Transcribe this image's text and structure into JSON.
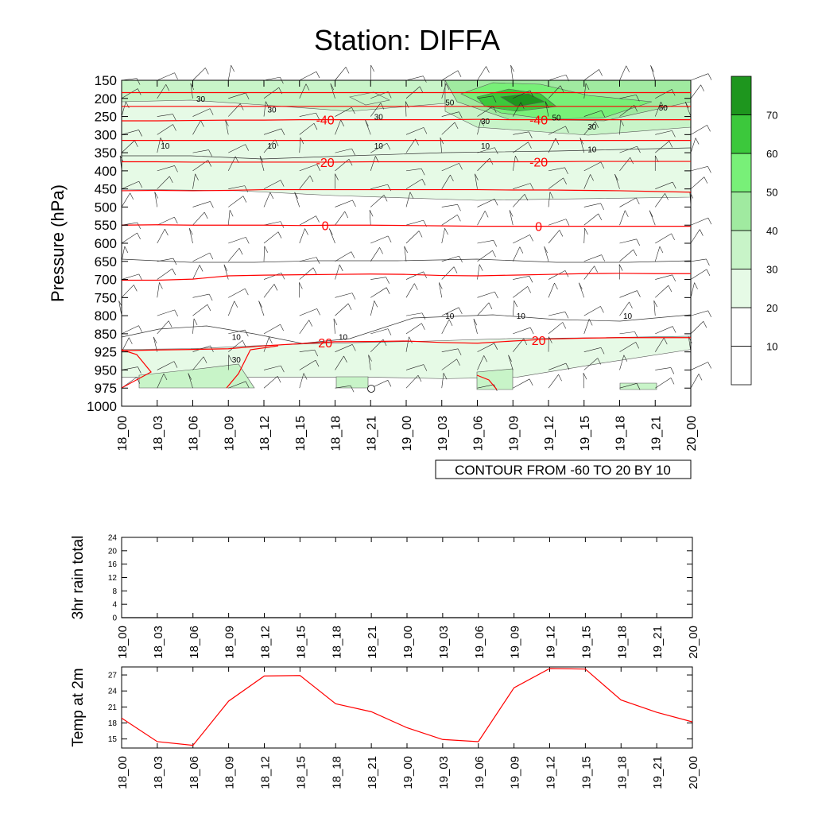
{
  "page": {
    "title": "Station: DIFFA"
  },
  "chart_data": [
    {
      "type": "heatmap",
      "name": "pressure-time cross section",
      "ylabel": "Pressure (hPa)",
      "y_ticks": [
        "150",
        "200",
        "250",
        "300",
        "350",
        "400",
        "450",
        "500",
        "550",
        "600",
        "650",
        "700",
        "750",
        "800",
        "850",
        "925",
        "950",
        "975",
        "1000"
      ],
      "x_ticks": [
        "18_00",
        "18_03",
        "18_06",
        "18_09",
        "18_12",
        "18_15",
        "18_18",
        "18_21",
        "19_00",
        "19_03",
        "19_06",
        "19_09",
        "19_12",
        "19_15",
        "19_18",
        "19_21",
        "20_00"
      ],
      "info_label": "CONTOUR FROM -60 TO 20 BY 10",
      "colorbar": {
        "levels": [
          "10",
          "20",
          "30",
          "40",
          "50",
          "60",
          "70"
        ],
        "colors": [
          "#ffffff",
          "#ffffff",
          "#e6fae6",
          "#c8f4c8",
          "#a0eaa0",
          "#78f078",
          "#3cc83c",
          "#1e961e"
        ]
      },
      "temperature_contours": [
        {
          "label": "-40",
          "values": [
            262,
            262,
            261,
            260,
            260,
            259,
            259,
            259,
            259,
            259,
            258,
            259,
            259,
            259,
            259,
            259,
            259
          ]
        },
        {
          "label": "",
          "values": [
            222,
            222,
            222,
            222,
            222,
            222,
            222,
            222,
            222,
            222,
            222,
            222,
            222,
            222,
            222,
            222,
            222
          ]
        },
        {
          "label": "",
          "values": [
            184,
            184,
            184,
            184,
            184,
            184,
            184,
            184,
            184,
            184,
            184,
            184,
            184,
            184,
            184,
            184,
            184
          ]
        },
        {
          "label": "",
          "values": [
            316,
            316,
            316,
            316,
            316,
            316,
            316,
            316,
            316,
            316,
            316,
            316,
            316,
            316,
            316,
            316,
            316
          ]
        },
        {
          "label": "-20",
          "values": [
            375,
            375,
            376,
            376,
            376,
            376,
            376,
            375,
            375,
            375,
            375,
            375,
            375,
            374,
            374,
            374,
            374
          ]
        },
        {
          "label": "",
          "values": [
            455,
            454,
            455,
            454,
            452,
            452,
            452,
            452,
            452,
            452,
            452,
            453,
            453,
            454,
            455,
            457,
            459
          ]
        },
        {
          "label": "0",
          "values": [
            550,
            549,
            550,
            550,
            550,
            551,
            550,
            550,
            551,
            552,
            553,
            553,
            553,
            553,
            553,
            553,
            553
          ]
        },
        {
          "label": "",
          "values": [
            702,
            702,
            699,
            690,
            688,
            687,
            686,
            685,
            686,
            689,
            690,
            688,
            686,
            684,
            683,
            684,
            684
          ]
        },
        {
          "label": "20",
          "values": [
            920,
            917,
            915,
            912,
            900,
            891,
            883,
            882,
            880,
            886,
            889,
            880,
            872,
            868,
            866,
            866,
            866
          ]
        }
      ],
      "wind_speed_labels": [
        {
          "label": "30",
          "x": "18_06",
          "p": "200"
        },
        {
          "label": "30",
          "x": "18_12",
          "p": "230"
        },
        {
          "label": "30",
          "x": "18_21",
          "p": "250"
        },
        {
          "label": "30",
          "x": "19_06",
          "p": "262"
        },
        {
          "label": "30",
          "x": "19_15",
          "p": "277"
        },
        {
          "label": "50",
          "x": "19_03",
          "p": "210"
        },
        {
          "label": "50",
          "x": "19_12",
          "p": "252"
        },
        {
          "label": "50",
          "x": "19_21",
          "p": "225"
        },
        {
          "label": "10",
          "x": "18_03",
          "p": "330"
        },
        {
          "label": "10",
          "x": "18_12",
          "p": "330"
        },
        {
          "label": "10",
          "x": "18_21",
          "p": "330"
        },
        {
          "label": "10",
          "x": "19_06",
          "p": "330"
        },
        {
          "label": "10",
          "x": "19_15",
          "p": "340"
        },
        {
          "label": "10",
          "x": "18_09",
          "p": "862"
        },
        {
          "label": "10",
          "x": "18_18",
          "p": "862"
        },
        {
          "label": "10",
          "x": "19_03",
          "p": "800"
        },
        {
          "label": "10",
          "x": "19_09",
          "p": "800"
        },
        {
          "label": "10",
          "x": "19_18",
          "p": "800"
        },
        {
          "label": "30",
          "x": "18_09",
          "p": "935"
        }
      ]
    },
    {
      "type": "line",
      "name": "rain",
      "ylabel": "3hr rain total",
      "ylim": [
        0,
        24
      ],
      "y_ticks": [
        "0",
        "4",
        "8",
        "12",
        "16",
        "20",
        "24"
      ],
      "x": [
        "18_00",
        "18_03",
        "18_06",
        "18_09",
        "18_12",
        "18_15",
        "18_18",
        "18_21",
        "19_00",
        "19_03",
        "19_06",
        "19_09",
        "19_12",
        "19_15",
        "19_18",
        "19_21",
        "20_00"
      ],
      "values": [
        0,
        0,
        0,
        0,
        0,
        0,
        0,
        0,
        0,
        0,
        0,
        0,
        0,
        0,
        0,
        0,
        0
      ]
    },
    {
      "type": "line",
      "name": "temperature",
      "ylabel": "Temp at 2m",
      "ylim": [
        13.3,
        28.5
      ],
      "y_ticks": [
        "15",
        "18",
        "21",
        "24",
        "27"
      ],
      "line_color": "#ff0000",
      "x": [
        "18_00",
        "18_03",
        "18_06",
        "18_09",
        "18_12",
        "18_15",
        "18_18",
        "18_21",
        "19_00",
        "19_03",
        "19_06",
        "19_09",
        "19_12",
        "19_15",
        "19_18",
        "19_21",
        "20_00"
      ],
      "values": [
        18.9,
        14.5,
        13.8,
        22.1,
        26.8,
        26.9,
        21.6,
        20.1,
        17.1,
        14.9,
        14.5,
        24.6,
        28.2,
        28.1,
        22.3,
        20.0,
        18.2
      ]
    }
  ]
}
